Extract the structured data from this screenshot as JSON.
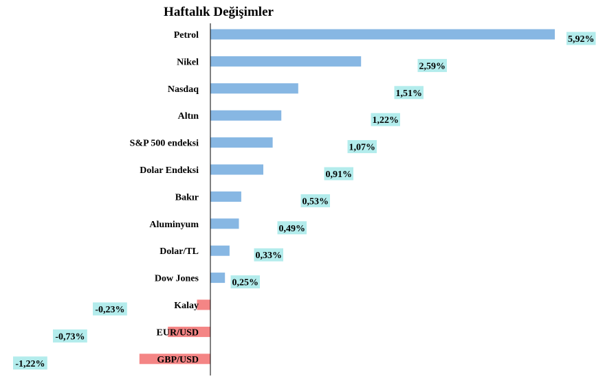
{
  "chart_data": {
    "type": "bar",
    "orientation": "horizontal",
    "title": "Haftalık Değişimler",
    "categories": [
      "Petrol",
      "Nikel",
      "Nasdaq",
      "Altın",
      "S&P 500 endeksi",
      "Dolar Endeksi",
      "Bakır",
      "Aluminyum",
      "Dolar/TL",
      "Dow Jones",
      "Kalay",
      "EUR/USD",
      "GBP/USD"
    ],
    "values": [
      5.92,
      2.59,
      1.51,
      1.22,
      1.07,
      0.91,
      0.53,
      0.49,
      0.33,
      0.25,
      -0.23,
      -0.73,
      -1.22
    ],
    "value_labels": [
      "5,92%",
      "2,59%",
      "1,51%",
      "1,22%",
      "1,07%",
      "0,91%",
      "0,53%",
      "0,49%",
      "0,33%",
      "0,25%",
      "-0,23%",
      "-0,73%",
      "-1,22%"
    ],
    "xlim": [
      -1.22,
      5.92
    ],
    "grid": false,
    "legend": "none",
    "colors": {
      "positive": "#87b7e3",
      "negative": "#f48585",
      "label_bg": "#b3ecec",
      "axis": "#000000"
    }
  }
}
